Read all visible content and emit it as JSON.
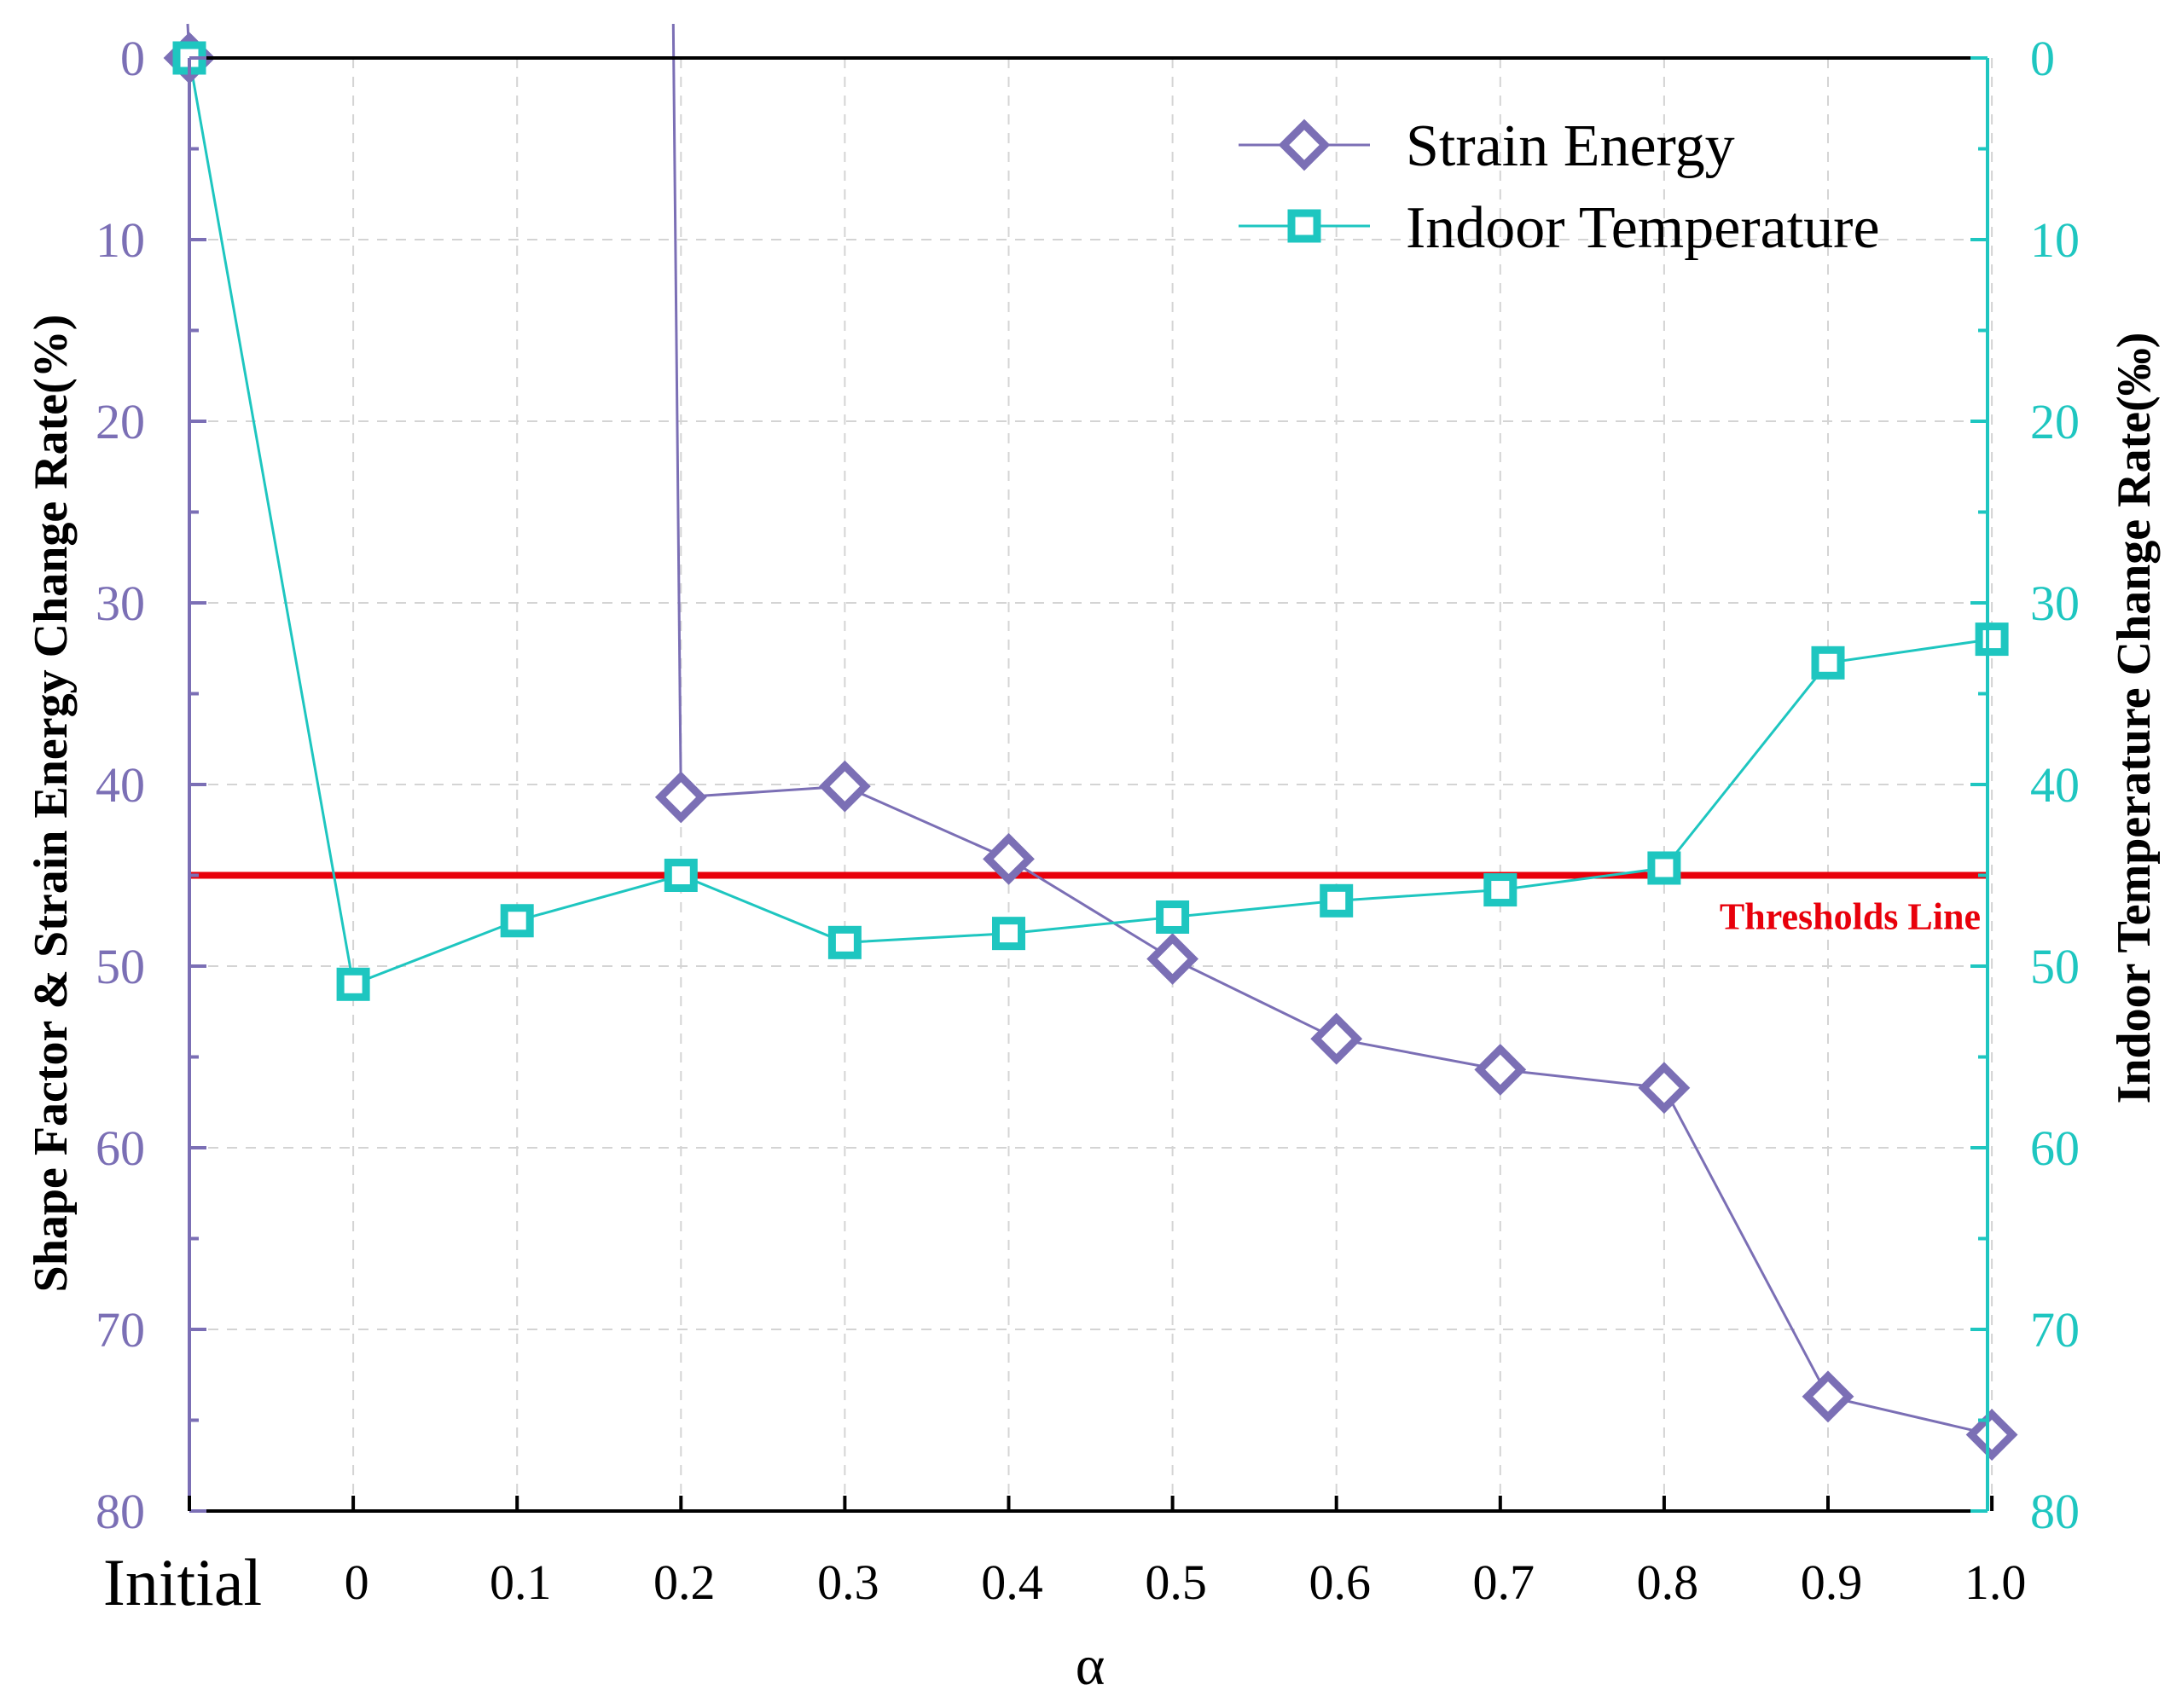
{
  "chart_data": {
    "type": "line",
    "categories": [
      "Initial",
      "0",
      "0.1",
      "0.2",
      "0.3",
      "0.4",
      "0.5",
      "0.6",
      "0.7",
      "0.8",
      "0.9",
      "1.0"
    ],
    "xlabel": "α",
    "left_axis": {
      "label": "Shape Factor & Strain Energy Change Rate(%)",
      "range": [
        0,
        80
      ],
      "inverted": true,
      "ticks": [
        "0",
        "10",
        "20",
        "30",
        "40",
        "50",
        "60",
        "70",
        "80"
      ],
      "color": "#7b6fb5"
    },
    "right_axis": {
      "label": "Indoor Temperature Change Rate(‰)",
      "range": [
        0,
        80
      ],
      "inverted": true,
      "ticks": [
        "0",
        "10",
        "20",
        "30",
        "40",
        "50",
        "60",
        "70",
        "80"
      ],
      "color": "#1ec6c0"
    },
    "series": [
      {
        "name": "Strain Energy",
        "marker": "diamond",
        "axis": "left",
        "color": "#7b6fb5",
        "values": [
          0,
          null,
          null,
          40.7,
          40.1,
          44.1,
          49.6,
          54.0,
          55.7,
          56.7,
          73.7,
          75.8
        ],
        "spike": {
          "from_category": "0.2",
          "from_value": 40.7,
          "to_value": -2,
          "note": "line goes off the top of the plot"
        }
      },
      {
        "name": "Indoor Temperature",
        "marker": "square",
        "axis": "right",
        "color": "#1ec6c0",
        "values": [
          0,
          51.0,
          47.5,
          45.0,
          48.7,
          48.2,
          47.3,
          46.4,
          45.8,
          44.6,
          33.3,
          32.0
        ]
      }
    ],
    "threshold": {
      "label": "Thresholds Line",
      "value": 45,
      "color": "#e8000b"
    },
    "grid": true,
    "legend_position": "top-right"
  }
}
